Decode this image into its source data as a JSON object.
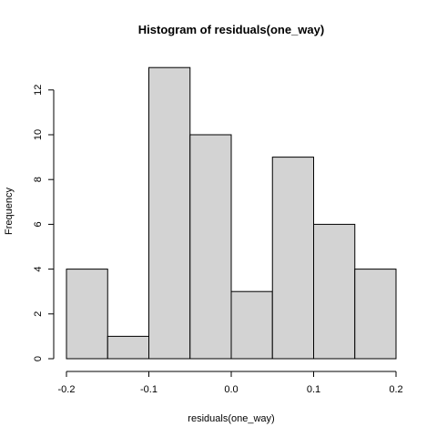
{
  "chart_data": {
    "type": "bar",
    "subtype": "histogram",
    "title": "Histogram of residuals(one_way)",
    "xlabel": "residuals(one_way)",
    "ylabel": "Frequency",
    "bins": [
      {
        "start": -0.2,
        "end": -0.15,
        "count": 4
      },
      {
        "start": -0.15,
        "end": -0.1,
        "count": 1
      },
      {
        "start": -0.1,
        "end": -0.05,
        "count": 13
      },
      {
        "start": -0.05,
        "end": 0.0,
        "count": 10
      },
      {
        "start": 0.0,
        "end": 0.05,
        "count": 3
      },
      {
        "start": 0.05,
        "end": 0.1,
        "count": 9
      },
      {
        "start": 0.1,
        "end": 0.15,
        "count": 6
      },
      {
        "start": 0.15,
        "end": 0.2,
        "count": 4
      }
    ],
    "xticks": [
      -0.2,
      -0.1,
      0.0,
      0.1,
      0.2
    ],
    "xtick_labels": [
      "-0.2",
      "-0.1",
      "0.0",
      "0.1",
      "0.2"
    ],
    "yticks": [
      0,
      2,
      4,
      6,
      8,
      10,
      12
    ],
    "ytick_labels": [
      "0",
      "2",
      "4",
      "6",
      "8",
      "10",
      "12"
    ],
    "xlim": [
      -0.2,
      0.2
    ],
    "ylim": [
      0,
      13
    ],
    "bar_fill": "#d3d3d3",
    "bar_stroke": "#000000",
    "grid": false
  }
}
